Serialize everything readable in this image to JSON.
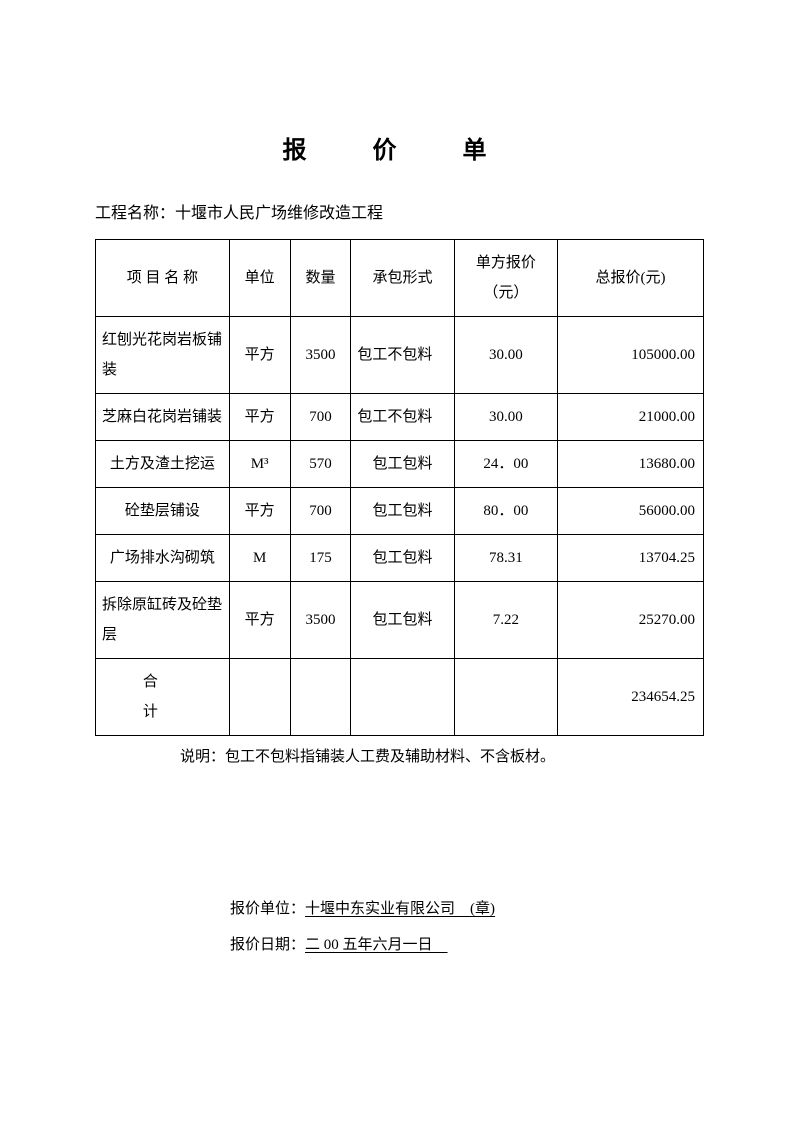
{
  "title": "报 价 单",
  "project_label": "工程名称：",
  "project_name": "十堰市人民广场维修改造工程",
  "table": {
    "headers": {
      "name": "项 目 名 称",
      "unit": "单位",
      "qty": "数量",
      "form": "承包形式",
      "price": "单方报价（元）",
      "total": "总报价(元)"
    },
    "rows": [
      {
        "name": "红刨光花岗岩板铺装",
        "unit": "平方",
        "qty": "3500",
        "form": "包工不包料",
        "price": "30.00",
        "total": "105000.00"
      },
      {
        "name": "芝麻白花岗岩铺装",
        "unit": "平方",
        "qty": "700",
        "form": "包工不包料",
        "price": "30.00",
        "total": "21000.00"
      },
      {
        "name": "土方及渣土挖运",
        "unit": "M³",
        "qty": "570",
        "form": "包工包料",
        "price": "24．00",
        "total": "13680.00"
      },
      {
        "name": "砼垫层铺设",
        "unit": "平方",
        "qty": "700",
        "form": "包工包料",
        "price": "80．00",
        "total": "56000.00"
      },
      {
        "name": "广场排水沟砌筑",
        "unit": "M",
        "qty": "175",
        "form": "包工包料",
        "price": "78.31",
        "total": "13704.25"
      },
      {
        "name": "拆除原缸砖及砼垫层",
        "unit": "平方",
        "qty": "3500",
        "form": "包工包料",
        "price": "7.22",
        "total": "25270.00"
      }
    ],
    "total_label": "合计",
    "total_value": "234654.25"
  },
  "note": "说明：包工不包料指铺装人工费及辅助材料、不含板材。",
  "footer": {
    "company_label": "报价单位：",
    "company_value": "十堰中东实业有限公司 (章)",
    "date_label": "报价日期：",
    "date_value": "二 00 五年六月一日 "
  }
}
